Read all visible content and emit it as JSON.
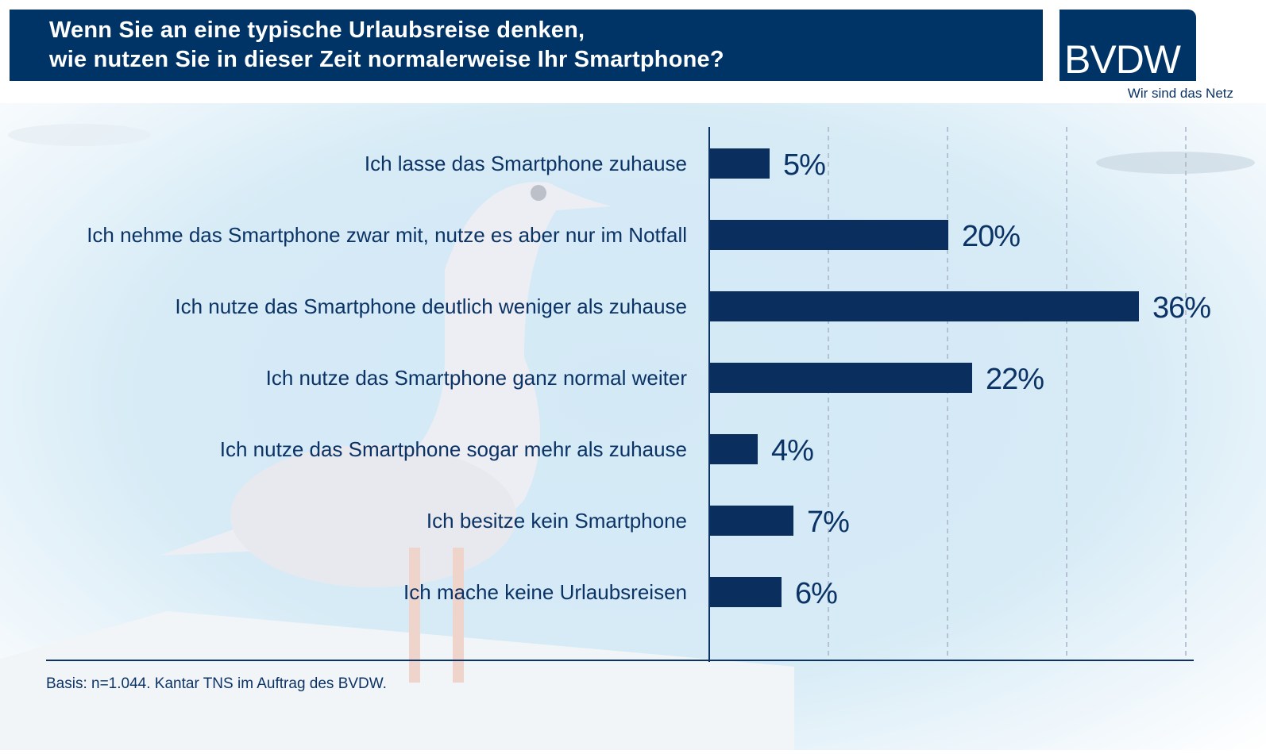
{
  "title": {
    "line1": "Wenn Sie an eine typische Urlaubsreise denken,",
    "line2": "wie nutzen Sie in dieser Zeit normalerweise Ihr Smartphone?"
  },
  "logo": {
    "text": "BVDW",
    "tagline": "Wir sind das Netz"
  },
  "footer": "Basis: n=1.044. Kantar TNS im Auftrag des BVDW.",
  "colors": {
    "brand": "#003466",
    "bar": "#0a2f5e",
    "grid": "#a9b4c8"
  },
  "chart_data": {
    "type": "bar",
    "orientation": "horizontal",
    "title": "Wenn Sie an eine typische Urlaubsreise denken, wie nutzen Sie in dieser Zeit normalerweise Ihr Smartphone?",
    "categories": [
      "Ich lasse das Smartphone zuhause",
      "Ich nehme das Smartphone zwar mit, nutze es aber nur im Notfall",
      "Ich nutze das Smartphone deutlich weniger als zuhause",
      "Ich nutze das Smartphone ganz normal weiter",
      "Ich nutze das Smartphone sogar mehr als zuhause",
      "Ich besitze kein Smartphone",
      "Ich mache keine Urlaubsreisen"
    ],
    "values": [
      5,
      20,
      36,
      22,
      4,
      7,
      6
    ],
    "value_labels": [
      "5%",
      "20%",
      "36%",
      "22%",
      "4%",
      "7%",
      "6%"
    ],
    "unit": "%",
    "xlim": [
      0,
      40
    ],
    "gridlines": [
      10,
      20,
      30,
      40
    ],
    "grid": true,
    "xlabel": "",
    "ylabel": ""
  }
}
